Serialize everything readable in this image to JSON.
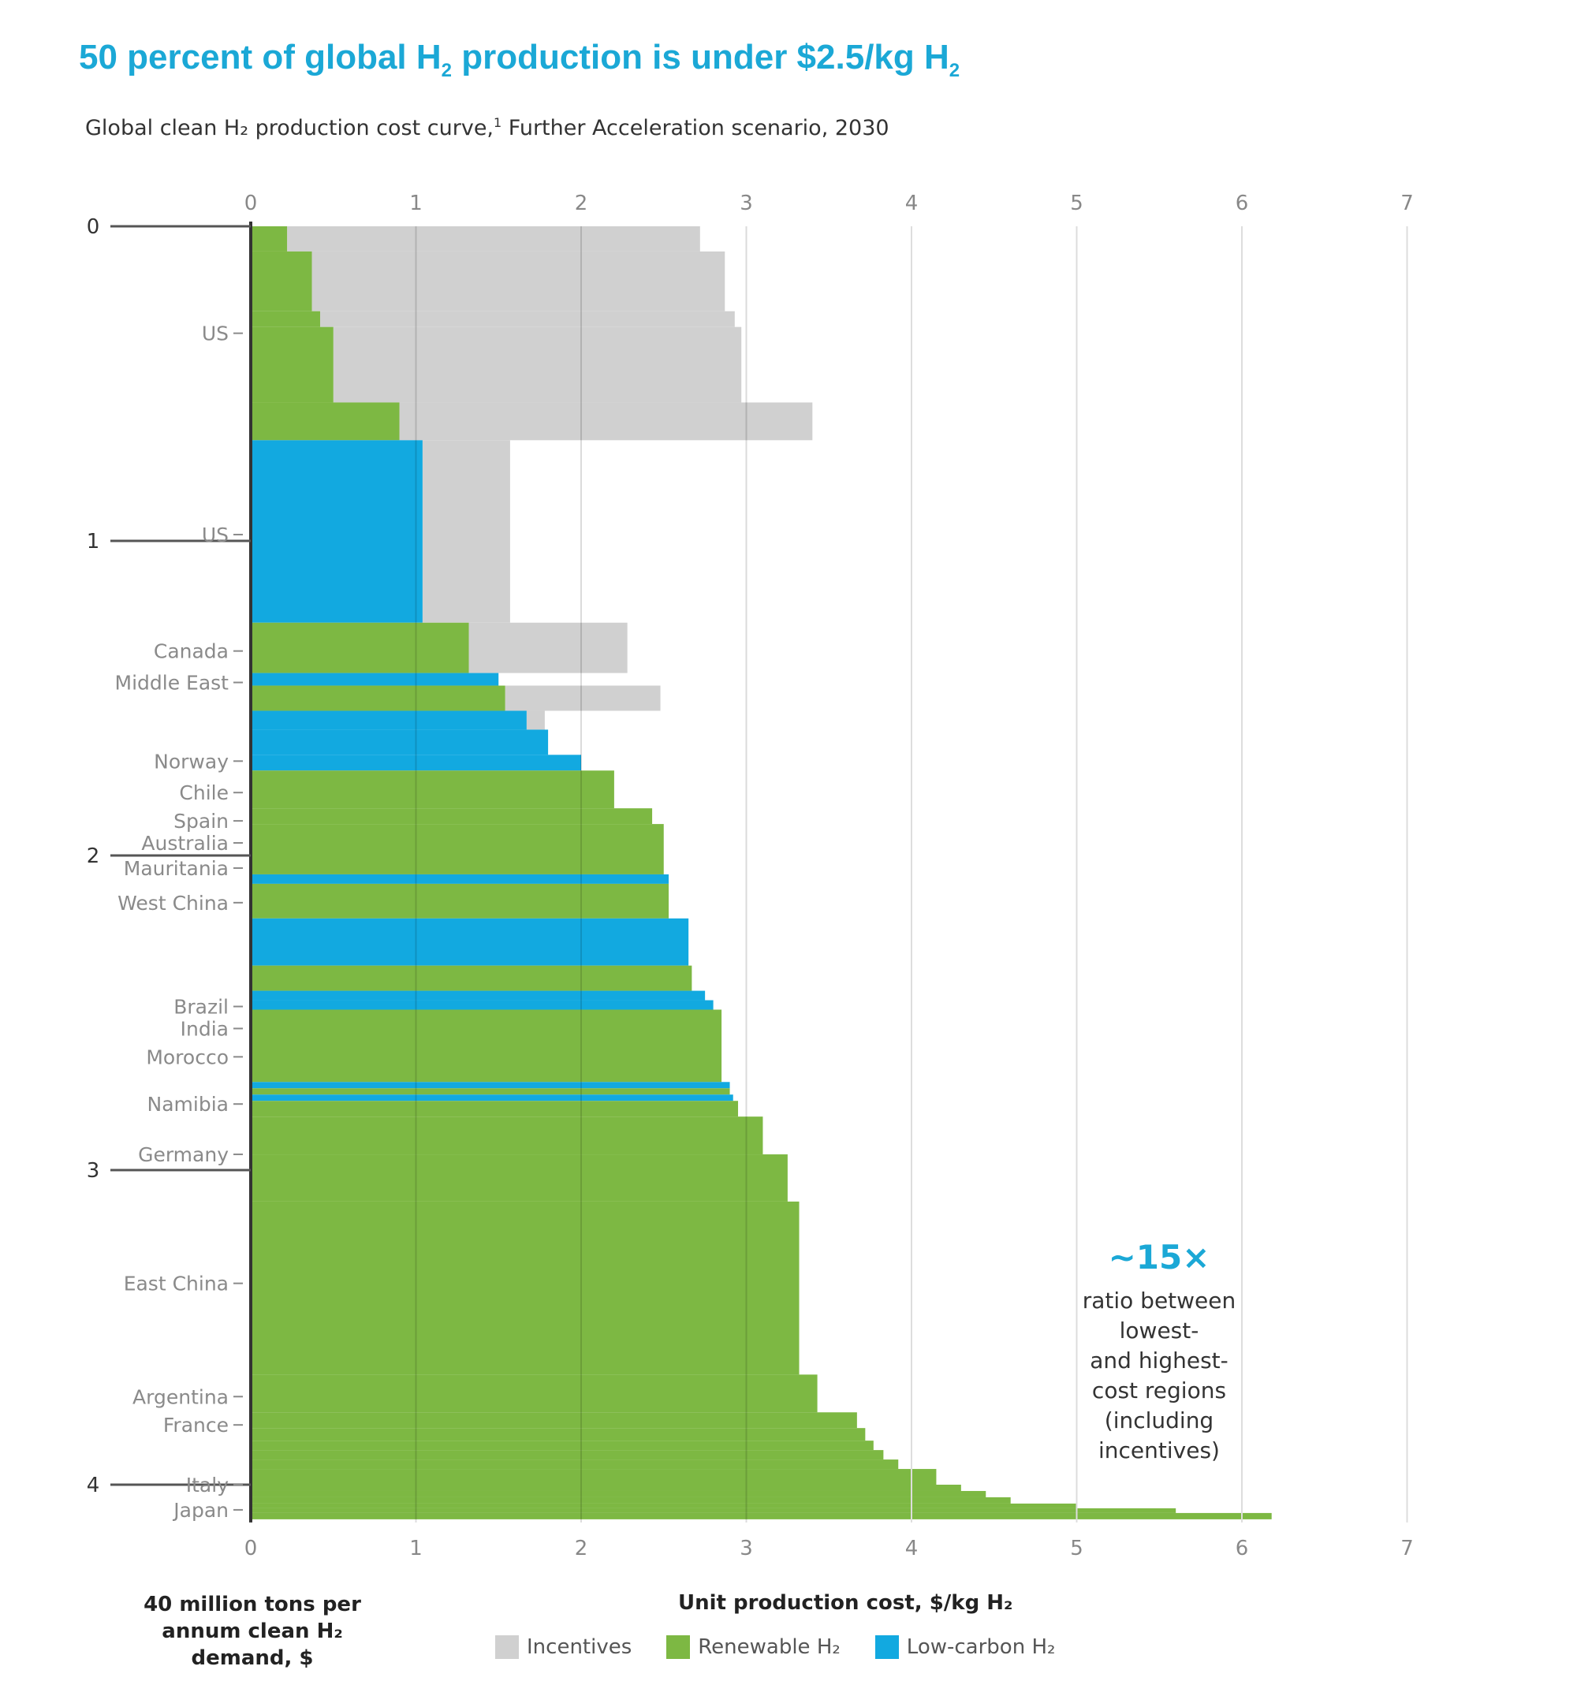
{
  "header": {
    "title_part1": "50 percent of global H",
    "title_sub1": "2",
    "title_part2": " production is under $2.5/kg H",
    "title_sub2": "2",
    "subtitle_part1": "Global clean H₂ production cost curve,",
    "subtitle_sup": "1",
    "subtitle_part2": " Further Acceleration scenario, 2030"
  },
  "chart_data": {
    "type": "bar",
    "orientation": "horizontal cost curve",
    "xlabel": "Unit production cost, $/kg H₂",
    "ylabel": "40 million tons per annum clean H₂ demand, $",
    "x_ticks": [
      "0",
      "1",
      "2",
      "3",
      "4",
      "5",
      "6",
      "7"
    ],
    "xlim": [
      0,
      7
    ],
    "y_ticks": [
      "0",
      "1",
      "2",
      "3",
      "4"
    ],
    "ylim": [
      0,
      4.12
    ],
    "grid": "vertical lines at each x tick",
    "legend_position": "bottom",
    "legend": [
      {
        "label": "Incentives",
        "color": "#d0d0d0"
      },
      {
        "label": "Renewable H₂",
        "color": "#7db843"
      },
      {
        "label": "Low-carbon H₂",
        "color": "#12a9e0"
      }
    ],
    "region_labels": [
      {
        "label": "US",
        "y": 0.34
      },
      {
        "label": "US",
        "y": 0.98
      },
      {
        "label": "Canada",
        "y": 1.35
      },
      {
        "label": "Middle East",
        "y": 1.45
      },
      {
        "label": "Norway",
        "y": 1.7
      },
      {
        "label": "Chile",
        "y": 1.8
      },
      {
        "label": "Spain",
        "y": 1.89
      },
      {
        "label": "Australia",
        "y": 1.96
      },
      {
        "label": "Mauritania",
        "y": 2.04
      },
      {
        "label": "West China",
        "y": 2.15
      },
      {
        "label": "Brazil",
        "y": 2.48
      },
      {
        "label": "India",
        "y": 2.55
      },
      {
        "label": "Morocco",
        "y": 2.64
      },
      {
        "label": "Namibia",
        "y": 2.79
      },
      {
        "label": "Germany",
        "y": 2.95
      },
      {
        "label": "East China",
        "y": 3.36
      },
      {
        "label": "Argentina",
        "y": 3.72
      },
      {
        "label": "France",
        "y": 3.81
      },
      {
        "label": "Italy",
        "y": 4.0
      },
      {
        "label": "Japan",
        "y": 4.08
      }
    ],
    "segments": [
      {
        "y0": 0.0,
        "y1": 0.08,
        "type": "renewable",
        "cost": 0.22,
        "incentive_end": 2.72
      },
      {
        "y0": 0.08,
        "y1": 0.27,
        "type": "renewable",
        "cost": 0.37,
        "incentive_end": 2.87
      },
      {
        "y0": 0.27,
        "y1": 0.32,
        "type": "renewable",
        "cost": 0.42,
        "incentive_end": 2.93
      },
      {
        "y0": 0.32,
        "y1": 0.56,
        "type": "renewable",
        "cost": 0.5,
        "incentive_end": 2.97
      },
      {
        "y0": 0.56,
        "y1": 0.68,
        "type": "renewable",
        "cost": 0.9,
        "incentive_end": 3.4
      },
      {
        "y0": 0.68,
        "y1": 1.26,
        "type": "low-carbon",
        "cost": 1.04,
        "incentive_end": 1.57
      },
      {
        "y0": 1.26,
        "y1": 1.42,
        "type": "renewable",
        "cost": 1.32,
        "incentive_end": 2.28
      },
      {
        "y0": 1.42,
        "y1": 1.46,
        "type": "low-carbon",
        "cost": 1.5,
        "incentive_end": null
      },
      {
        "y0": 1.46,
        "y1": 1.54,
        "type": "renewable",
        "cost": 1.54,
        "incentive_end": 2.48
      },
      {
        "y0": 1.54,
        "y1": 1.6,
        "type": "low-carbon",
        "cost": 1.67,
        "incentive_end": 1.78
      },
      {
        "y0": 1.6,
        "y1": 1.68,
        "type": "low-carbon",
        "cost": 1.8,
        "incentive_end": null
      },
      {
        "y0": 1.68,
        "y1": 1.73,
        "type": "low-carbon",
        "cost": 2.0,
        "incentive_end": null
      },
      {
        "y0": 1.73,
        "y1": 1.85,
        "type": "renewable",
        "cost": 2.2,
        "incentive_end": null
      },
      {
        "y0": 1.85,
        "y1": 1.9,
        "type": "renewable",
        "cost": 2.43,
        "incentive_end": null
      },
      {
        "y0": 1.9,
        "y1": 2.06,
        "type": "renewable",
        "cost": 2.5,
        "incentive_end": null
      },
      {
        "y0": 2.06,
        "y1": 2.09,
        "type": "low-carbon",
        "cost": 2.53,
        "incentive_end": null
      },
      {
        "y0": 2.09,
        "y1": 2.2,
        "type": "renewable",
        "cost": 2.53,
        "incentive_end": null
      },
      {
        "y0": 2.2,
        "y1": 2.35,
        "type": "low-carbon",
        "cost": 2.65,
        "incentive_end": null
      },
      {
        "y0": 2.35,
        "y1": 2.43,
        "type": "renewable",
        "cost": 2.67,
        "incentive_end": null
      },
      {
        "y0": 2.43,
        "y1": 2.46,
        "type": "low-carbon",
        "cost": 2.75,
        "incentive_end": null
      },
      {
        "y0": 2.46,
        "y1": 2.49,
        "type": "low-carbon",
        "cost": 2.8,
        "incentive_end": null
      },
      {
        "y0": 2.49,
        "y1": 2.72,
        "type": "renewable",
        "cost": 2.85,
        "incentive_end": null
      },
      {
        "y0": 2.72,
        "y1": 2.74,
        "type": "low-carbon",
        "cost": 2.9,
        "incentive_end": null
      },
      {
        "y0": 2.74,
        "y1": 2.76,
        "type": "renewable",
        "cost": 2.9,
        "incentive_end": null
      },
      {
        "y0": 2.76,
        "y1": 2.78,
        "type": "low-carbon",
        "cost": 2.92,
        "incentive_end": null
      },
      {
        "y0": 2.78,
        "y1": 2.83,
        "type": "renewable",
        "cost": 2.95,
        "incentive_end": null
      },
      {
        "y0": 2.83,
        "y1": 2.95,
        "type": "renewable",
        "cost": 3.1,
        "incentive_end": null
      },
      {
        "y0": 2.95,
        "y1": 3.1,
        "type": "renewable",
        "cost": 3.25,
        "incentive_end": null
      },
      {
        "y0": 3.1,
        "y1": 3.65,
        "type": "renewable",
        "cost": 3.32,
        "incentive_end": null
      },
      {
        "y0": 3.65,
        "y1": 3.77,
        "type": "renewable",
        "cost": 3.43,
        "incentive_end": null
      },
      {
        "y0": 3.77,
        "y1": 3.82,
        "type": "renewable",
        "cost": 3.67,
        "incentive_end": null
      },
      {
        "y0": 3.82,
        "y1": 3.86,
        "type": "renewable",
        "cost": 3.72,
        "incentive_end": null
      },
      {
        "y0": 3.86,
        "y1": 3.89,
        "type": "renewable",
        "cost": 3.77,
        "incentive_end": null
      },
      {
        "y0": 3.89,
        "y1": 3.92,
        "type": "renewable",
        "cost": 3.83,
        "incentive_end": null
      },
      {
        "y0": 3.92,
        "y1": 3.95,
        "type": "renewable",
        "cost": 3.92,
        "incentive_end": null
      },
      {
        "y0": 3.95,
        "y1": 4.0,
        "type": "renewable",
        "cost": 4.15,
        "incentive_end": null
      },
      {
        "y0": 4.0,
        "y1": 4.02,
        "type": "renewable",
        "cost": 4.3,
        "incentive_end": null
      },
      {
        "y0": 4.02,
        "y1": 4.04,
        "type": "renewable",
        "cost": 4.45,
        "incentive_end": null
      },
      {
        "y0": 4.04,
        "y1": 4.06,
        "type": "renewable",
        "cost": 4.6,
        "incentive_end": null
      },
      {
        "y0": 4.06,
        "y1": 4.075,
        "type": "renewable",
        "cost": 5.0,
        "incentive_end": null
      },
      {
        "y0": 4.075,
        "y1": 4.09,
        "type": "renewable",
        "cost": 5.6,
        "incentive_end": null
      },
      {
        "y0": 4.09,
        "y1": 4.11,
        "type": "renewable",
        "cost": 6.18,
        "incentive_end": null
      }
    ],
    "annotation": {
      "value": "~15×",
      "text_lines": [
        "ratio between",
        "lowest-",
        "and highest-",
        "cost regions",
        "(including",
        "incentives)"
      ]
    }
  },
  "colors": {
    "title": "#1ba8d6",
    "renewable": "#7db843",
    "low_carbon": "#12a9e0",
    "incentives": "#d0d0d0",
    "grid": "#dddddd",
    "axis_text": "#888888"
  }
}
